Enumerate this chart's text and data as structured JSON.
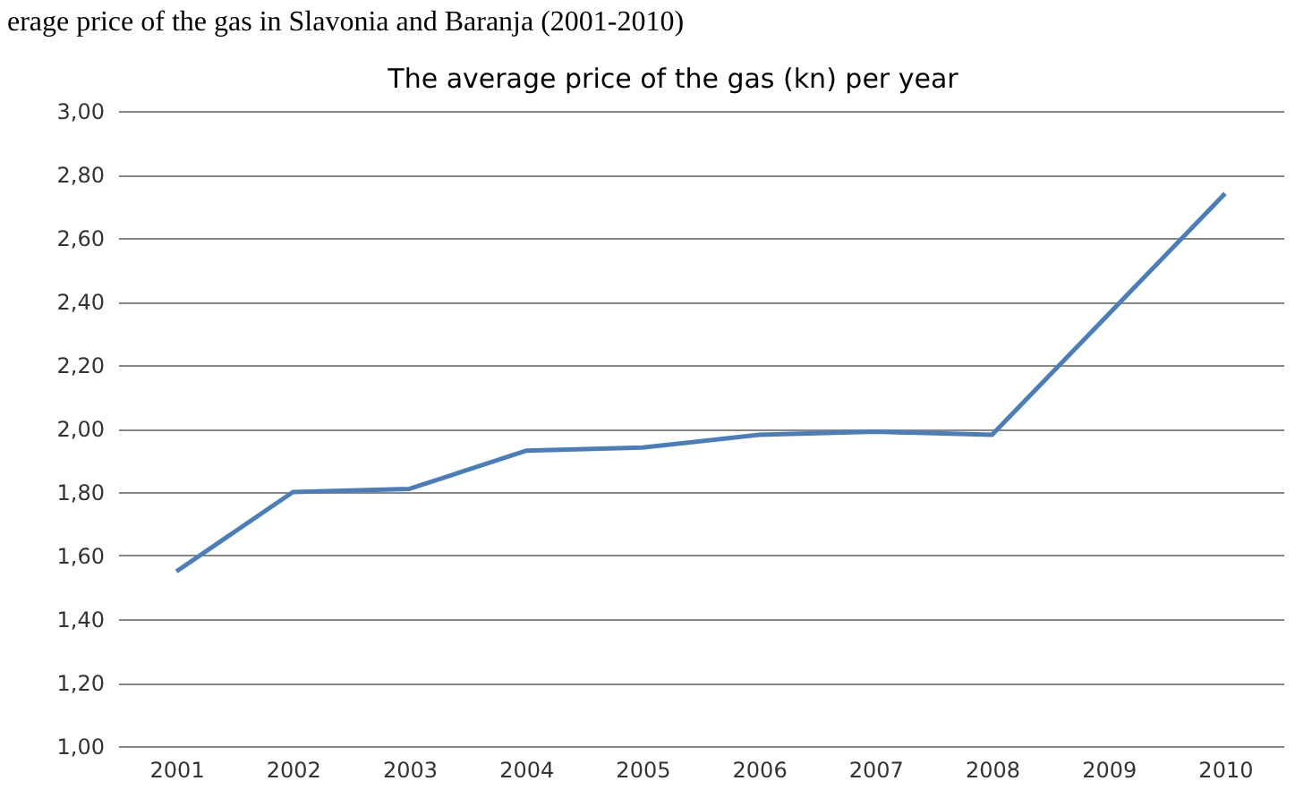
{
  "chart_data": {
    "type": "line",
    "title": "The average price of the gas (kn) per year",
    "annotations": [
      "erage price of the gas in Slavonia and Baranja (2001-2010)"
    ],
    "categories": [
      "2001",
      "2002",
      "2003",
      "2004",
      "2005",
      "2006",
      "2007",
      "2008",
      "2009",
      "2010"
    ],
    "series": [
      {
        "color": "#4a7ebb",
        "values": [
          1.55,
          1.8,
          1.81,
          1.93,
          1.94,
          1.98,
          1.99,
          1.98,
          2.36,
          2.74
        ]
      }
    ],
    "ylim": [
      1.0,
      3.0
    ],
    "yticks": [
      {
        "value": 1.0,
        "label": "1,00"
      },
      {
        "value": 1.2,
        "label": "1,20"
      },
      {
        "value": 1.4,
        "label": "1,40"
      },
      {
        "value": 1.6,
        "label": "1,60"
      },
      {
        "value": 1.8,
        "label": "1,80"
      },
      {
        "value": 2.0,
        "label": "2,00"
      },
      {
        "value": 2.2,
        "label": "2,20"
      },
      {
        "value": 2.4,
        "label": "2,40"
      },
      {
        "value": 2.6,
        "label": "2,60"
      },
      {
        "value": 2.8,
        "label": "2,80"
      },
      {
        "value": 3.0,
        "label": "3,00"
      }
    ],
    "grid": "y",
    "marker": "none",
    "line_style": "solid"
  }
}
